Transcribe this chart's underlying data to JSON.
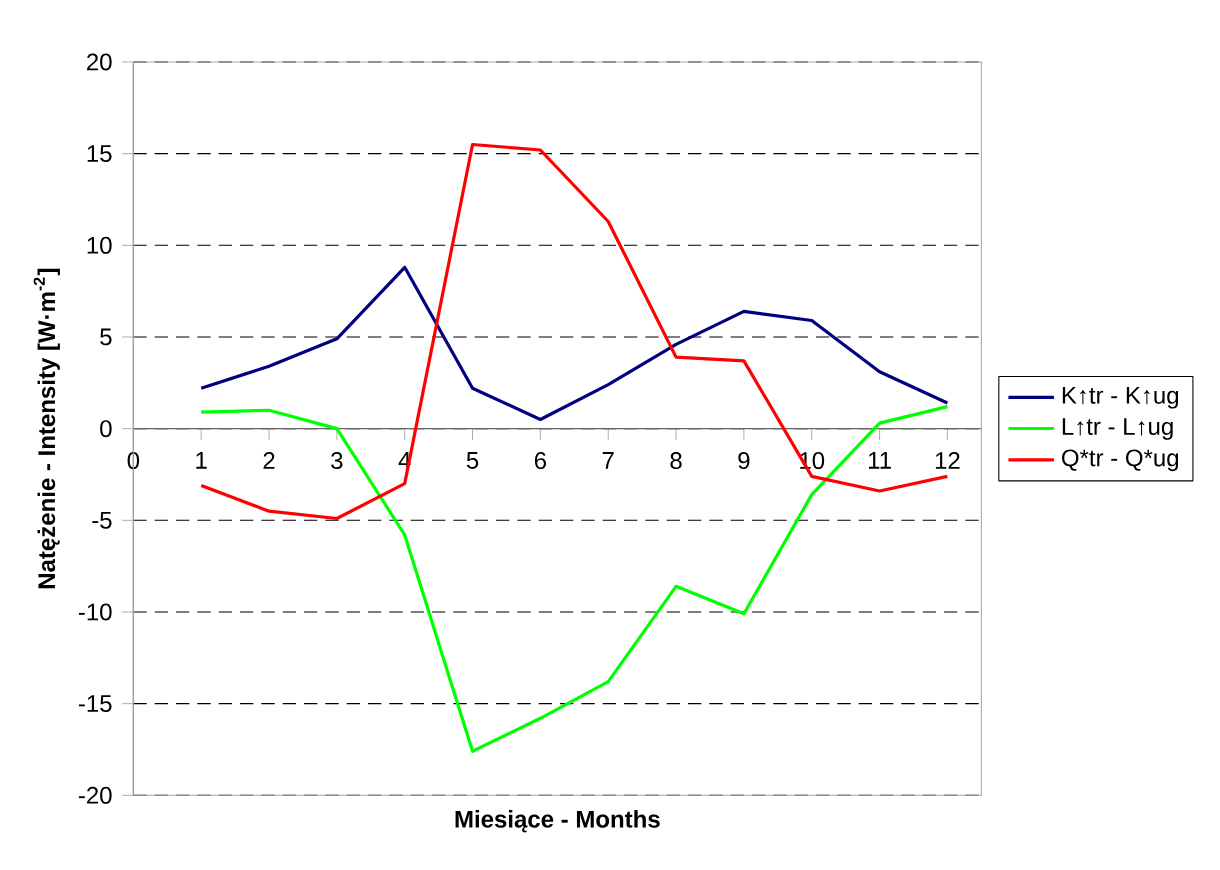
{
  "chart_data": {
    "type": "line",
    "xlabel": "Miesiące    -    Months",
    "ylabel": "Natężenie    -    Intensity  [W·m$^{-2}$]",
    "x": [
      1,
      2,
      3,
      4,
      5,
      6,
      7,
      8,
      9,
      10,
      11,
      12
    ],
    "xlim": [
      0,
      12.5
    ],
    "xticks": [
      0,
      1,
      2,
      3,
      4,
      5,
      6,
      7,
      8,
      9,
      10,
      11,
      12
    ],
    "ylim": [
      -20,
      20
    ],
    "yticks": [
      -20,
      -15,
      -10,
      -5,
      0,
      5,
      10,
      15,
      20
    ],
    "grid": "y",
    "legend": "right",
    "marker": "none",
    "line_style": "solid",
    "series": [
      {
        "name": "K↑tr - K↑ug",
        "color": "#000080",
        "values": [
          2.2,
          3.4,
          4.9,
          8.8,
          2.2,
          0.5,
          2.4,
          4.6,
          6.4,
          5.9,
          3.1,
          1.4
        ]
      },
      {
        "name": "L↑tr - L↑ug",
        "color": "#00ff00",
        "values": [
          0.9,
          1.0,
          0.0,
          -5.8,
          -17.6,
          -15.8,
          -13.8,
          -8.6,
          -10.1,
          -3.6,
          0.3,
          1.2
        ]
      },
      {
        "name": "Q*tr - Q*ug",
        "color": "#ff0000",
        "values": [
          -3.1,
          -4.5,
          -4.9,
          -3.0,
          15.5,
          15.2,
          11.3,
          3.9,
          3.7,
          -2.6,
          -3.4,
          -2.6
        ]
      }
    ]
  }
}
